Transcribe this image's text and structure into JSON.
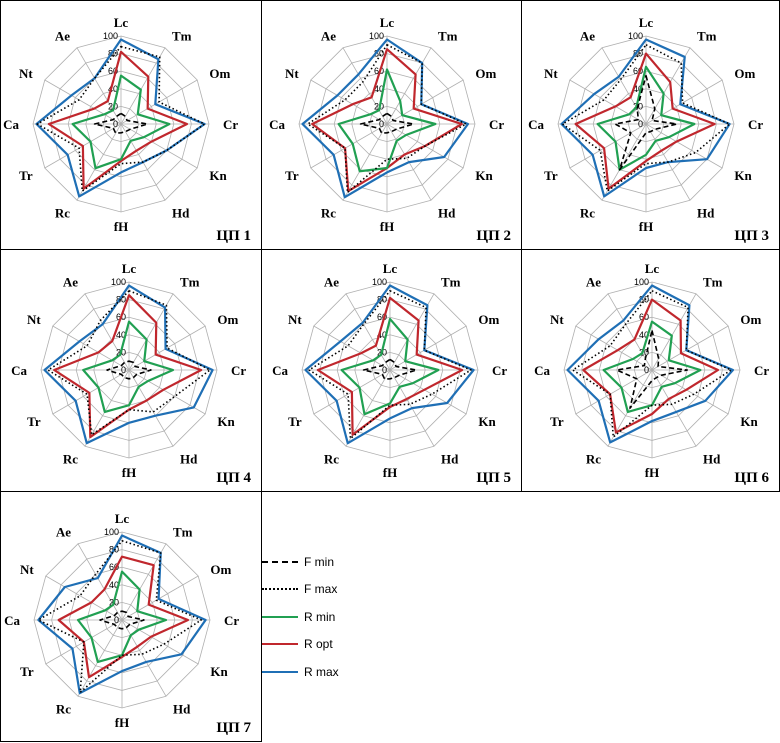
{
  "axes": [
    "Lc",
    "Tm",
    "Om",
    "Cr",
    "Kn",
    "Hd",
    "fH",
    "Rc",
    "Tr",
    "Ca",
    "Nt",
    "Ae"
  ],
  "ticks": [
    "0",
    "20",
    "40",
    "60",
    "80",
    "100"
  ],
  "legend": [
    {
      "label": "F min",
      "color": "#000000",
      "style": "dashed"
    },
    {
      "label": "F max",
      "color": "#000000",
      "style": "dotted"
    },
    {
      "label": "R min",
      "color": "#21a052",
      "style": "solid"
    },
    {
      "label": "R opt",
      "color": "#c0272d",
      "style": "solid"
    },
    {
      "label": "R max",
      "color": "#1f6fb5",
      "style": "solid"
    }
  ],
  "chart_data": [
    {
      "type": "radar",
      "title": "ЦП 1",
      "axes": [
        "Lc",
        "Tm",
        "Om",
        "Cr",
        "Kn",
        "Hd",
        "fH",
        "Rc",
        "Tr",
        "Ca",
        "Nt",
        "Ae"
      ],
      "rlim": [
        0,
        100
      ],
      "series": [
        {
          "name": "F min",
          "values": [
            12,
            10,
            8,
            30,
            12,
            10,
            10,
            12,
            10,
            30,
            10,
            10
          ]
        },
        {
          "name": "F max",
          "values": [
            88,
            88,
            50,
            95,
            60,
            50,
            45,
            88,
            55,
            95,
            55,
            60
          ]
        },
        {
          "name": "R min",
          "values": [
            55,
            45,
            22,
            55,
            30,
            22,
            40,
            58,
            40,
            55,
            22,
            18
          ]
        },
        {
          "name": "R opt",
          "values": [
            82,
            62,
            35,
            75,
            40,
            35,
            42,
            85,
            50,
            82,
            35,
            30
          ]
        },
        {
          "name": "R max",
          "values": [
            96,
            85,
            45,
            95,
            60,
            50,
            55,
            95,
            70,
            96,
            65,
            60
          ]
        }
      ]
    },
    {
      "type": "radar",
      "title": "ЦП 2",
      "axes": [
        "Lc",
        "Tm",
        "Om",
        "Cr",
        "Kn",
        "Hd",
        "fH",
        "Rc",
        "Tr",
        "Ca",
        "Nt",
        "Ae"
      ],
      "rlim": [
        0,
        100
      ],
      "series": [
        {
          "name": "F min",
          "values": [
            12,
            10,
            8,
            30,
            12,
            10,
            10,
            12,
            10,
            30,
            10,
            10
          ]
        },
        {
          "name": "F max",
          "values": [
            90,
            80,
            45,
            90,
            50,
            45,
            40,
            90,
            55,
            90,
            55,
            55
          ]
        },
        {
          "name": "R min",
          "values": [
            62,
            30,
            20,
            55,
            25,
            22,
            50,
            62,
            45,
            55,
            22,
            18
          ]
        },
        {
          "name": "R opt",
          "values": [
            85,
            65,
            35,
            85,
            50,
            40,
            50,
            88,
            55,
            85,
            45,
            35
          ]
        },
        {
          "name": "R max",
          "values": [
            96,
            80,
            45,
            92,
            75,
            50,
            55,
            96,
            70,
            96,
            65,
            65
          ]
        }
      ]
    },
    {
      "type": "radar",
      "title": "ЦП 3",
      "axes": [
        "Lc",
        "Tm",
        "Om",
        "Cr",
        "Kn",
        "Hd",
        "fH",
        "Rc",
        "Tr",
        "Ca",
        "Nt",
        "Ae"
      ],
      "rlim": [
        0,
        100
      ],
      "series": [
        {
          "name": "F min",
          "values": [
            55,
            20,
            8,
            35,
            12,
            10,
            10,
            60,
            20,
            35,
            10,
            20
          ]
        },
        {
          "name": "F max",
          "values": [
            90,
            80,
            48,
            95,
            65,
            50,
            45,
            88,
            60,
            95,
            55,
            58
          ]
        },
        {
          "name": "R min",
          "values": [
            65,
            40,
            20,
            55,
            30,
            22,
            35,
            60,
            40,
            55,
            22,
            22
          ]
        },
        {
          "name": "R opt",
          "values": [
            80,
            55,
            35,
            78,
            40,
            35,
            42,
            85,
            55,
            80,
            40,
            35
          ]
        },
        {
          "name": "R max",
          "values": [
            96,
            88,
            45,
            95,
            80,
            50,
            50,
            95,
            70,
            96,
            68,
            62
          ]
        }
      ]
    },
    {
      "type": "radar",
      "title": "ЦП 4",
      "axes": [
        "Lc",
        "Tm",
        "Om",
        "Cr",
        "Kn",
        "Hd",
        "fH",
        "Rc",
        "Tr",
        "Ca",
        "Nt",
        "Ae"
      ],
      "rlim": [
        0,
        100
      ],
      "series": [
        {
          "name": "F min",
          "values": [
            10,
            10,
            8,
            25,
            10,
            10,
            10,
            10,
            10,
            25,
            10,
            10
          ]
        },
        {
          "name": "F max",
          "values": [
            90,
            85,
            50,
            92,
            60,
            55,
            45,
            85,
            55,
            92,
            55,
            65
          ]
        },
        {
          "name": "R min",
          "values": [
            55,
            40,
            20,
            50,
            25,
            22,
            40,
            55,
            40,
            52,
            22,
            20
          ]
        },
        {
          "name": "R opt",
          "values": [
            85,
            62,
            35,
            82,
            45,
            40,
            45,
            88,
            52,
            85,
            40,
            38
          ]
        },
        {
          "name": "R max",
          "values": [
            96,
            82,
            48,
            95,
            85,
            60,
            60,
            96,
            70,
            96,
            65,
            60
          ]
        }
      ]
    },
    {
      "type": "radar",
      "title": "ЦП 5",
      "axes": [
        "Lc",
        "Tm",
        "Om",
        "Cr",
        "Kn",
        "Hd",
        "fH",
        "Rc",
        "Tr",
        "Ca",
        "Nt",
        "Ae"
      ],
      "rlim": [
        0,
        100
      ],
      "series": [
        {
          "name": "F min",
          "values": [
            12,
            10,
            8,
            30,
            12,
            10,
            10,
            12,
            10,
            30,
            10,
            10
          ]
        },
        {
          "name": "F max",
          "values": [
            90,
            82,
            45,
            92,
            55,
            45,
            40,
            90,
            55,
            92,
            55,
            60
          ]
        },
        {
          "name": "R min",
          "values": [
            58,
            40,
            20,
            55,
            30,
            22,
            38,
            58,
            40,
            55,
            22,
            20
          ]
        },
        {
          "name": "R opt",
          "values": [
            82,
            65,
            35,
            82,
            45,
            38,
            42,
            85,
            50,
            82,
            38,
            32
          ]
        },
        {
          "name": "R max",
          "values": [
            96,
            85,
            45,
            95,
            75,
            50,
            55,
            96,
            70,
            96,
            65,
            62
          ]
        }
      ]
    },
    {
      "type": "radar",
      "title": "ЦП 6",
      "axes": [
        "Lc",
        "Tm",
        "Om",
        "Cr",
        "Kn",
        "Hd",
        "fH",
        "Rc",
        "Tr",
        "Ca",
        "Nt",
        "Ae"
      ],
      "rlim": [
        0,
        100
      ],
      "series": [
        {
          "name": "F min",
          "values": [
            45,
            15,
            8,
            40,
            12,
            10,
            12,
            50,
            20,
            40,
            10,
            15
          ]
        },
        {
          "name": "F max",
          "values": [
            90,
            82,
            45,
            90,
            55,
            45,
            40,
            88,
            55,
            90,
            55,
            60
          ]
        },
        {
          "name": "R min",
          "values": [
            55,
            45,
            22,
            55,
            30,
            22,
            40,
            55,
            40,
            55,
            25,
            22
          ]
        },
        {
          "name": "R opt",
          "values": [
            80,
            65,
            38,
            75,
            45,
            38,
            50,
            82,
            55,
            78,
            45,
            40
          ]
        },
        {
          "name": "R max",
          "values": [
            96,
            85,
            45,
            92,
            70,
            55,
            58,
            95,
            70,
            96,
            70,
            65
          ]
        }
      ]
    },
    {
      "type": "radar",
      "title": "ЦП 7",
      "axes": [
        "Lc",
        "Tm",
        "Om",
        "Cr",
        "Kn",
        "Hd",
        "fH",
        "Rc",
        "Tr",
        "Ca",
        "Nt",
        "Ae"
      ],
      "rlim": [
        0,
        100
      ],
      "series": [
        {
          "name": "F min",
          "values": [
            10,
            10,
            8,
            25,
            10,
            10,
            10,
            10,
            10,
            25,
            10,
            10
          ]
        },
        {
          "name": "F max",
          "values": [
            90,
            88,
            45,
            90,
            55,
            45,
            40,
            95,
            50,
            95,
            55,
            60
          ]
        },
        {
          "name": "R min",
          "values": [
            55,
            40,
            20,
            50,
            22,
            20,
            40,
            55,
            40,
            50,
            22,
            20
          ]
        },
        {
          "name": "R opt",
          "values": [
            72,
            72,
            35,
            75,
            38,
            35,
            42,
            75,
            50,
            72,
            40,
            40
          ]
        },
        {
          "name": "R max",
          "values": [
            96,
            88,
            48,
            95,
            78,
            55,
            58,
            96,
            65,
            95,
            75,
            55
          ]
        }
      ]
    }
  ]
}
